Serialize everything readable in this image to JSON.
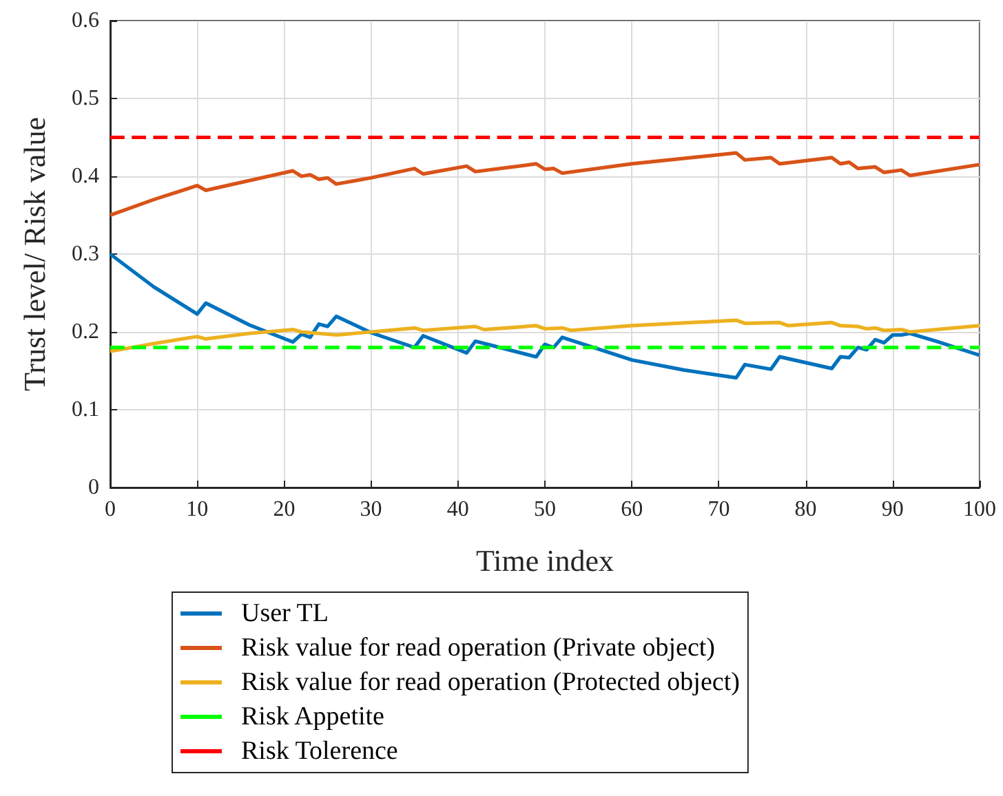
{
  "chart_data": {
    "type": "line",
    "xlabel": "Time index",
    "ylabel": "Trust level/ Risk value",
    "xlim": [
      0,
      100
    ],
    "xticks": [
      0,
      10,
      20,
      30,
      40,
      50,
      60,
      70,
      80,
      90,
      100
    ],
    "ylim": [
      0,
      0.6
    ],
    "yticks": [
      0,
      0.1,
      0.2,
      0.3,
      0.4,
      0.5,
      0.6
    ],
    "grid": true,
    "legend": "bottom",
    "marker": "none",
    "series": [
      {
        "name": "User TL",
        "color": "#0072bd",
        "line_style": "solid",
        "x": [
          0,
          5,
          10,
          11,
          16,
          21,
          22,
          23,
          24,
          25,
          26,
          30,
          35,
          36,
          41,
          42,
          45.5,
          49,
          50,
          51,
          52,
          60,
          66,
          72,
          73,
          76,
          77,
          83,
          84,
          85,
          86,
          87,
          88,
          89,
          90,
          91,
          92,
          95,
          100
        ],
        "values": [
          0.3,
          0.258,
          0.223,
          0.237,
          0.209,
          0.187,
          0.197,
          0.193,
          0.21,
          0.207,
          0.22,
          0.199,
          0.18,
          0.195,
          0.173,
          0.188,
          0.178,
          0.168,
          0.184,
          0.18,
          0.193,
          0.164,
          0.151,
          0.141,
          0.158,
          0.152,
          0.168,
          0.153,
          0.168,
          0.167,
          0.18,
          0.177,
          0.19,
          0.186,
          0.196,
          0.196,
          0.198,
          0.188,
          0.17
        ]
      },
      {
        "name": "Risk value for read operation (Private object)",
        "color": "#d95319",
        "line_style": "solid",
        "x": [
          0,
          5,
          10,
          11,
          21,
          22,
          23,
          24,
          25,
          26,
          30,
          35,
          36,
          41,
          42,
          49,
          50,
          51,
          52,
          60,
          72,
          73,
          76,
          77,
          83,
          84,
          85,
          86,
          88,
          89,
          91,
          92,
          100
        ],
        "values": [
          0.35,
          0.37,
          0.388,
          0.382,
          0.407,
          0.4,
          0.402,
          0.396,
          0.398,
          0.39,
          0.398,
          0.41,
          0.403,
          0.413,
          0.406,
          0.416,
          0.409,
          0.41,
          0.404,
          0.416,
          0.43,
          0.421,
          0.424,
          0.416,
          0.424,
          0.416,
          0.418,
          0.41,
          0.412,
          0.405,
          0.408,
          0.401,
          0.415
        ]
      },
      {
        "name": "Risk value for read operation (Protected object)",
        "color": "#edb120",
        "line_style": "solid",
        "x": [
          0,
          5,
          10,
          11,
          16,
          21,
          22,
          26,
          35,
          36,
          42,
          43,
          49,
          50,
          52,
          53,
          60,
          72,
          73,
          77,
          78,
          83,
          84,
          86,
          87,
          88,
          89,
          91,
          92,
          100
        ],
        "values": [
          0.175,
          0.185,
          0.194,
          0.191,
          0.198,
          0.203,
          0.2,
          0.196,
          0.205,
          0.202,
          0.207,
          0.203,
          0.208,
          0.204,
          0.205,
          0.202,
          0.208,
          0.215,
          0.211,
          0.212,
          0.208,
          0.212,
          0.208,
          0.207,
          0.204,
          0.205,
          0.202,
          0.203,
          0.2,
          0.208
        ]
      },
      {
        "name": "Risk Appetite",
        "color": "#00ff00",
        "line_style": "dashed",
        "x": [
          0,
          100
        ],
        "values": [
          0.18,
          0.18
        ]
      },
      {
        "name": "Risk Tolerence",
        "color": "#ff0000",
        "line_style": "dashed",
        "x": [
          0,
          100
        ],
        "values": [
          0.45,
          0.45
        ]
      }
    ]
  }
}
